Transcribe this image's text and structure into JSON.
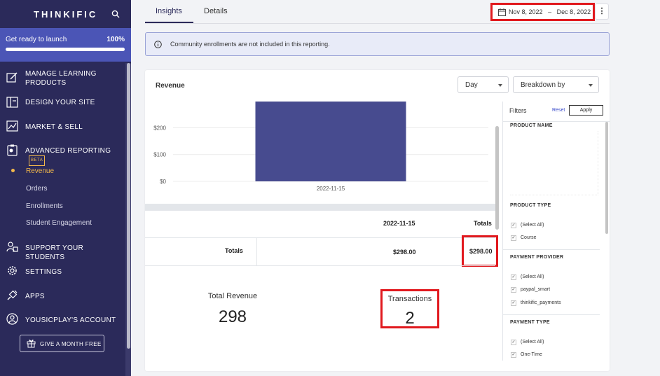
{
  "sidebar": {
    "logo": "THINKIFIC",
    "launch": {
      "label": "Get ready to launch",
      "percent_text": "100%",
      "progress": 1.0
    },
    "nav": [
      {
        "label": "MANAGE LEARNING PRODUCTS",
        "icon": "edit-icon"
      },
      {
        "label": "DESIGN YOUR SITE",
        "icon": "layout-icon"
      },
      {
        "label": "MARKET & SELL",
        "icon": "chart-trend-icon"
      },
      {
        "label": "ADVANCED REPORTING",
        "icon": "report-icon",
        "badge": "BETA"
      },
      {
        "label": "SUPPORT YOUR STUDENTS",
        "icon": "users-icon"
      },
      {
        "label": "SETTINGS",
        "icon": "gear-icon"
      },
      {
        "label": "APPS",
        "icon": "plug-icon"
      },
      {
        "label": "YOUSICPLAY'S ACCOUNT",
        "icon": "account-icon"
      }
    ],
    "sub_items": [
      "Revenue",
      "Orders",
      "Enrollments",
      "Student Engagement"
    ],
    "active_sub": "Revenue",
    "gift_button": "GIVE A MONTH FREE"
  },
  "tabs": {
    "insights": "Insights",
    "details": "Details"
  },
  "date_range": {
    "start": "Nov 8, 2022",
    "separator": "–",
    "end": "Dec 8, 2022"
  },
  "notice": "Community enrollments are not included in this reporting.",
  "card": {
    "title": "Revenue",
    "interval": "Day",
    "breakdown": "Breakdown by"
  },
  "chart_data": {
    "type": "bar",
    "categories": [
      "2022-11-15"
    ],
    "values": [
      298
    ],
    "ylim": [
      0,
      298
    ],
    "yticks": [
      0,
      100,
      200
    ],
    "ytick_labels": [
      "$0",
      "$100",
      "$200"
    ],
    "bar_color": "#474b8f",
    "grid": true
  },
  "table": {
    "date_header": "2022-11-15",
    "totals_header": "Totals",
    "row_label": "Totals",
    "row_value": "$298.00",
    "row_total": "$298.00"
  },
  "kpis": {
    "revenue_label": "Total Revenue",
    "revenue_value": "298",
    "transactions_label": "Transactions",
    "transactions_value": "2"
  },
  "filters": {
    "title": "Filters",
    "reset": "Reset",
    "apply": "Apply",
    "product_name": "PRODUCT NAME",
    "product_type": {
      "label": "PRODUCT TYPE",
      "options": [
        "(Select All)",
        "Course"
      ]
    },
    "payment_provider": {
      "label": "PAYMENT PROVIDER",
      "options": [
        "(Select All)",
        "paypal_smart",
        "thinkific_payments"
      ]
    },
    "payment_type": {
      "label": "PAYMENT TYPE",
      "options": [
        "(Select All)",
        "One-Time"
      ]
    },
    "check_glyph": "✓"
  },
  "colors": {
    "sidebar": "#2b2a5a",
    "launch": "#4b55b6",
    "accent": "#f2b84b",
    "highlight": "#e1191e"
  }
}
